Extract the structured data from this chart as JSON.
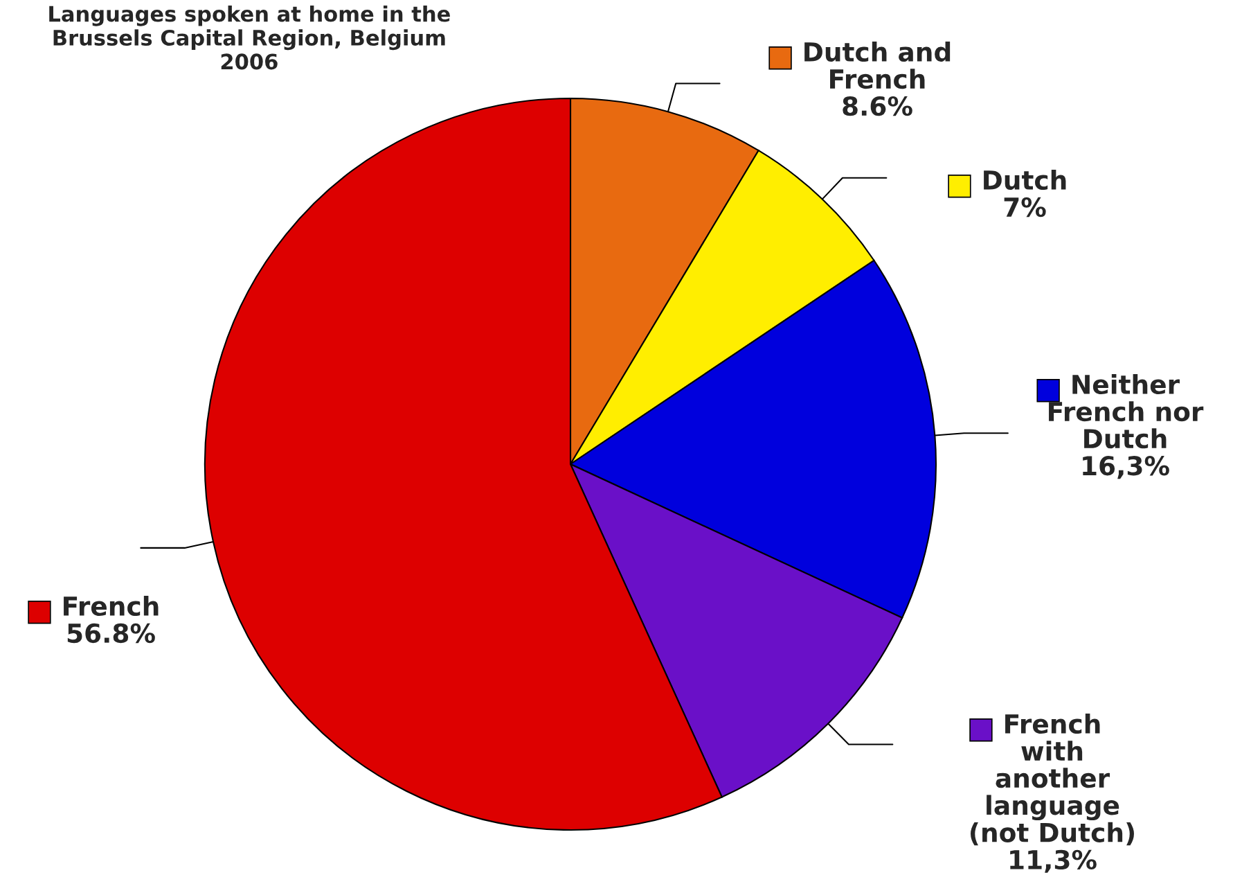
{
  "chart_data": {
    "type": "pie",
    "title": "Languages spoken at home in the\nBrussels Capital Region, Belgium\n2006",
    "categories": [
      "Dutch and\nFrench",
      "Dutch",
      "Neither\nFrench nor\nDutch",
      "French\nwith\nanother\nlanguage\n(not Dutch)",
      "French"
    ],
    "values": [
      8.6,
      7,
      16.3,
      11.3,
      56.8
    ],
    "value_labels": [
      "8.6%",
      "7%",
      "16,3%",
      "11,3%",
      "56.8%"
    ],
    "colors": [
      "#e86a10",
      "#ffee00",
      "#0000dd",
      "#6a10c8",
      "#dd0000"
    ],
    "legend": "right"
  }
}
